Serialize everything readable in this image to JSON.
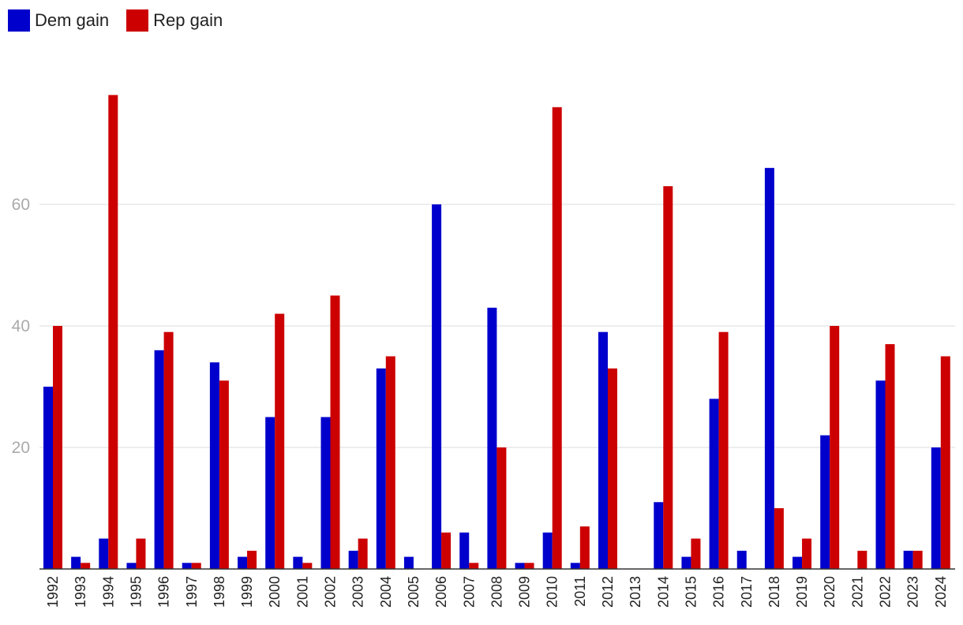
{
  "chart_data": {
    "type": "bar",
    "categories": [
      "1992",
      "1993",
      "1994",
      "1995",
      "1996",
      "1997",
      "1998",
      "1999",
      "2000",
      "2001",
      "2002",
      "2003",
      "2004",
      "2005",
      "2006",
      "2007",
      "2008",
      "2009",
      "2010",
      "2011",
      "2012",
      "2013",
      "2014",
      "2015",
      "2016",
      "2017",
      "2018",
      "2019",
      "2020",
      "2021",
      "2022",
      "2023",
      "2024"
    ],
    "series": [
      {
        "name": "Dem gain",
        "color": "#0000cc",
        "values": [
          30,
          2,
          5,
          1,
          36,
          1,
          34,
          2,
          25,
          2,
          25,
          3,
          33,
          2,
          60,
          6,
          43,
          1,
          6,
          1,
          39,
          0,
          11,
          2,
          28,
          3,
          66,
          2,
          22,
          0,
          31,
          3,
          20
        ]
      },
      {
        "name": "Rep gain",
        "color": "#cc0000",
        "values": [
          40,
          1,
          78,
          5,
          39,
          1,
          31,
          3,
          42,
          1,
          45,
          5,
          35,
          0,
          6,
          1,
          20,
          1,
          76,
          7,
          33,
          0,
          63,
          5,
          39,
          0,
          10,
          5,
          40,
          3,
          37,
          3,
          35
        ]
      }
    ],
    "title": "",
    "xlabel": "",
    "ylabel": "",
    "ylim": [
      0,
      80
    ],
    "yticks": [
      20,
      40,
      60
    ],
    "grid": true,
    "legend": "top-left"
  }
}
